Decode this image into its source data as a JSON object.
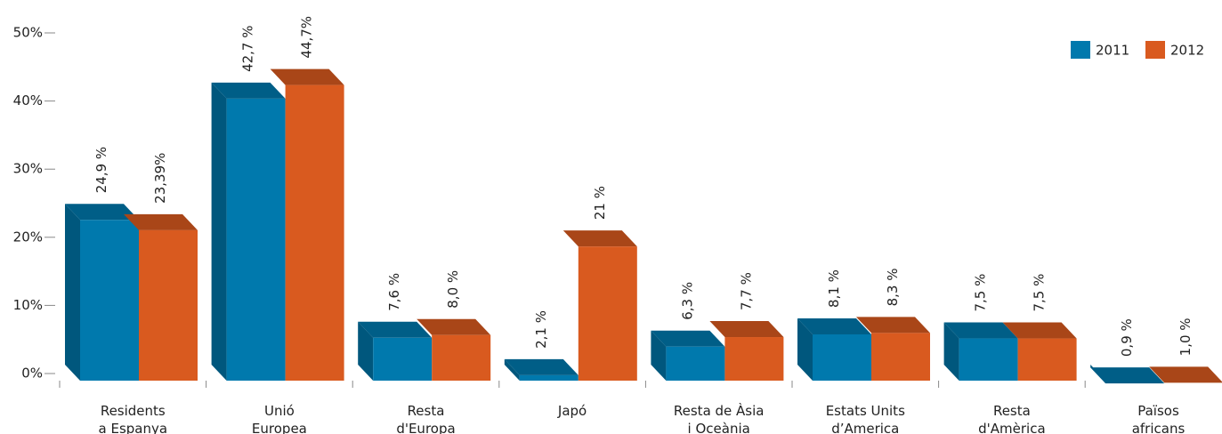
{
  "chart_data": {
    "type": "bar3d",
    "categories": [
      "Residents\na Espanya",
      "Unió\nEuropea",
      "Resta\nd'Europa",
      "Japó",
      "Resta de Àsia\ni Oceània",
      "Estats Units\nd’America",
      "Resta\nd'Amèrica",
      "Països\nafricans"
    ],
    "series": [
      {
        "name": "2011",
        "color": "#0079ad",
        "values": [
          24.9,
          42.7,
          7.6,
          2.1,
          6.3,
          8.1,
          7.5,
          0.9
        ],
        "value_labels": [
          "24,9 %",
          "42,7 %",
          "7,6 %",
          "2,1 %",
          "6,3 %",
          "8,1 %",
          "7,5 %",
          "0,9 %"
        ]
      },
      {
        "name": "2012",
        "color": "#d95a1f",
        "values": [
          23.39,
          44.7,
          8.0,
          21,
          7.7,
          8.3,
          7.5,
          1.0
        ],
        "value_labels": [
          "23,39%",
          "44,7%",
          "8,0 %",
          "21 %",
          "7,7 %",
          "8,3 %",
          "7,5 %",
          "1,0 %"
        ]
      }
    ],
    "ylim": [
      0,
      50
    ],
    "yticks": [
      {
        "value": 0,
        "label": "0%"
      },
      {
        "value": 10,
        "label": "10%"
      },
      {
        "value": 20,
        "label": "20%"
      },
      {
        "value": 30,
        "label": "30%"
      },
      {
        "value": 40,
        "label": "40%"
      },
      {
        "value": 50,
        "label": "50%"
      }
    ],
    "legend": "top-right"
  }
}
